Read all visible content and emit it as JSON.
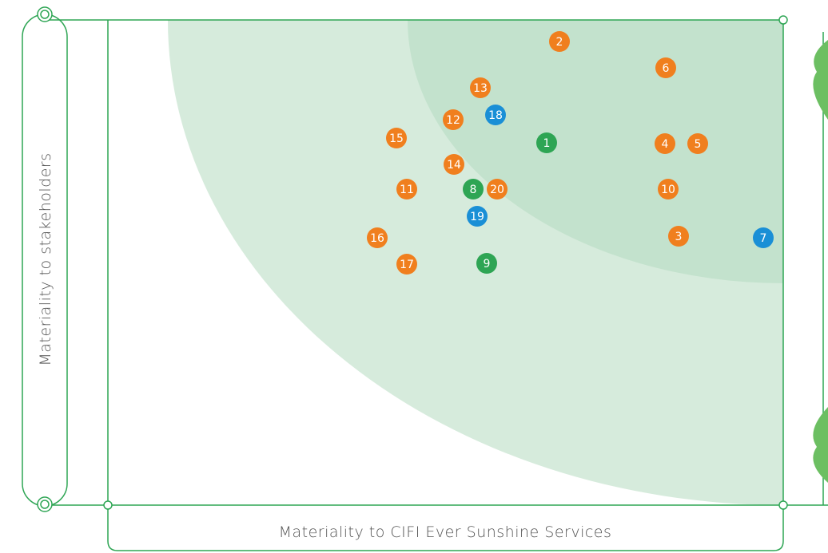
{
  "y_axis_label": "Materiality to stakeholders",
  "x_axis_label": "Materiality to CIFI Ever Sunshine Services",
  "nodes": [
    {
      "label": "1",
      "color": "#2ea554"
    },
    {
      "label": "2",
      "color": "#f07f1e"
    },
    {
      "label": "3",
      "color": "#f07f1e"
    },
    {
      "label": "4",
      "color": "#f07f1e"
    },
    {
      "label": "5",
      "color": "#f07f1e"
    },
    {
      "label": "6",
      "color": "#f07f1e"
    },
    {
      "label": "7",
      "color": "#1a8fd6"
    },
    {
      "label": "8",
      "color": "#2ea554"
    },
    {
      "label": "9",
      "color": "#2ea554"
    },
    {
      "label": "10",
      "color": "#f07f1e"
    },
    {
      "label": "11",
      "color": "#f07f1e"
    },
    {
      "label": "12",
      "color": "#f07f1e"
    },
    {
      "label": "13",
      "color": "#f07f1e"
    },
    {
      "label": "14",
      "color": "#f07f1e"
    },
    {
      "label": "15",
      "color": "#f07f1e"
    },
    {
      "label": "16",
      "color": "#f07f1e"
    },
    {
      "label": "17",
      "color": "#f07f1e"
    },
    {
      "label": "18",
      "color": "#1a8fd6"
    },
    {
      "label": "19",
      "color": "#1a8fd6"
    },
    {
      "label": "20",
      "color": "#f07f1e"
    }
  ]
}
